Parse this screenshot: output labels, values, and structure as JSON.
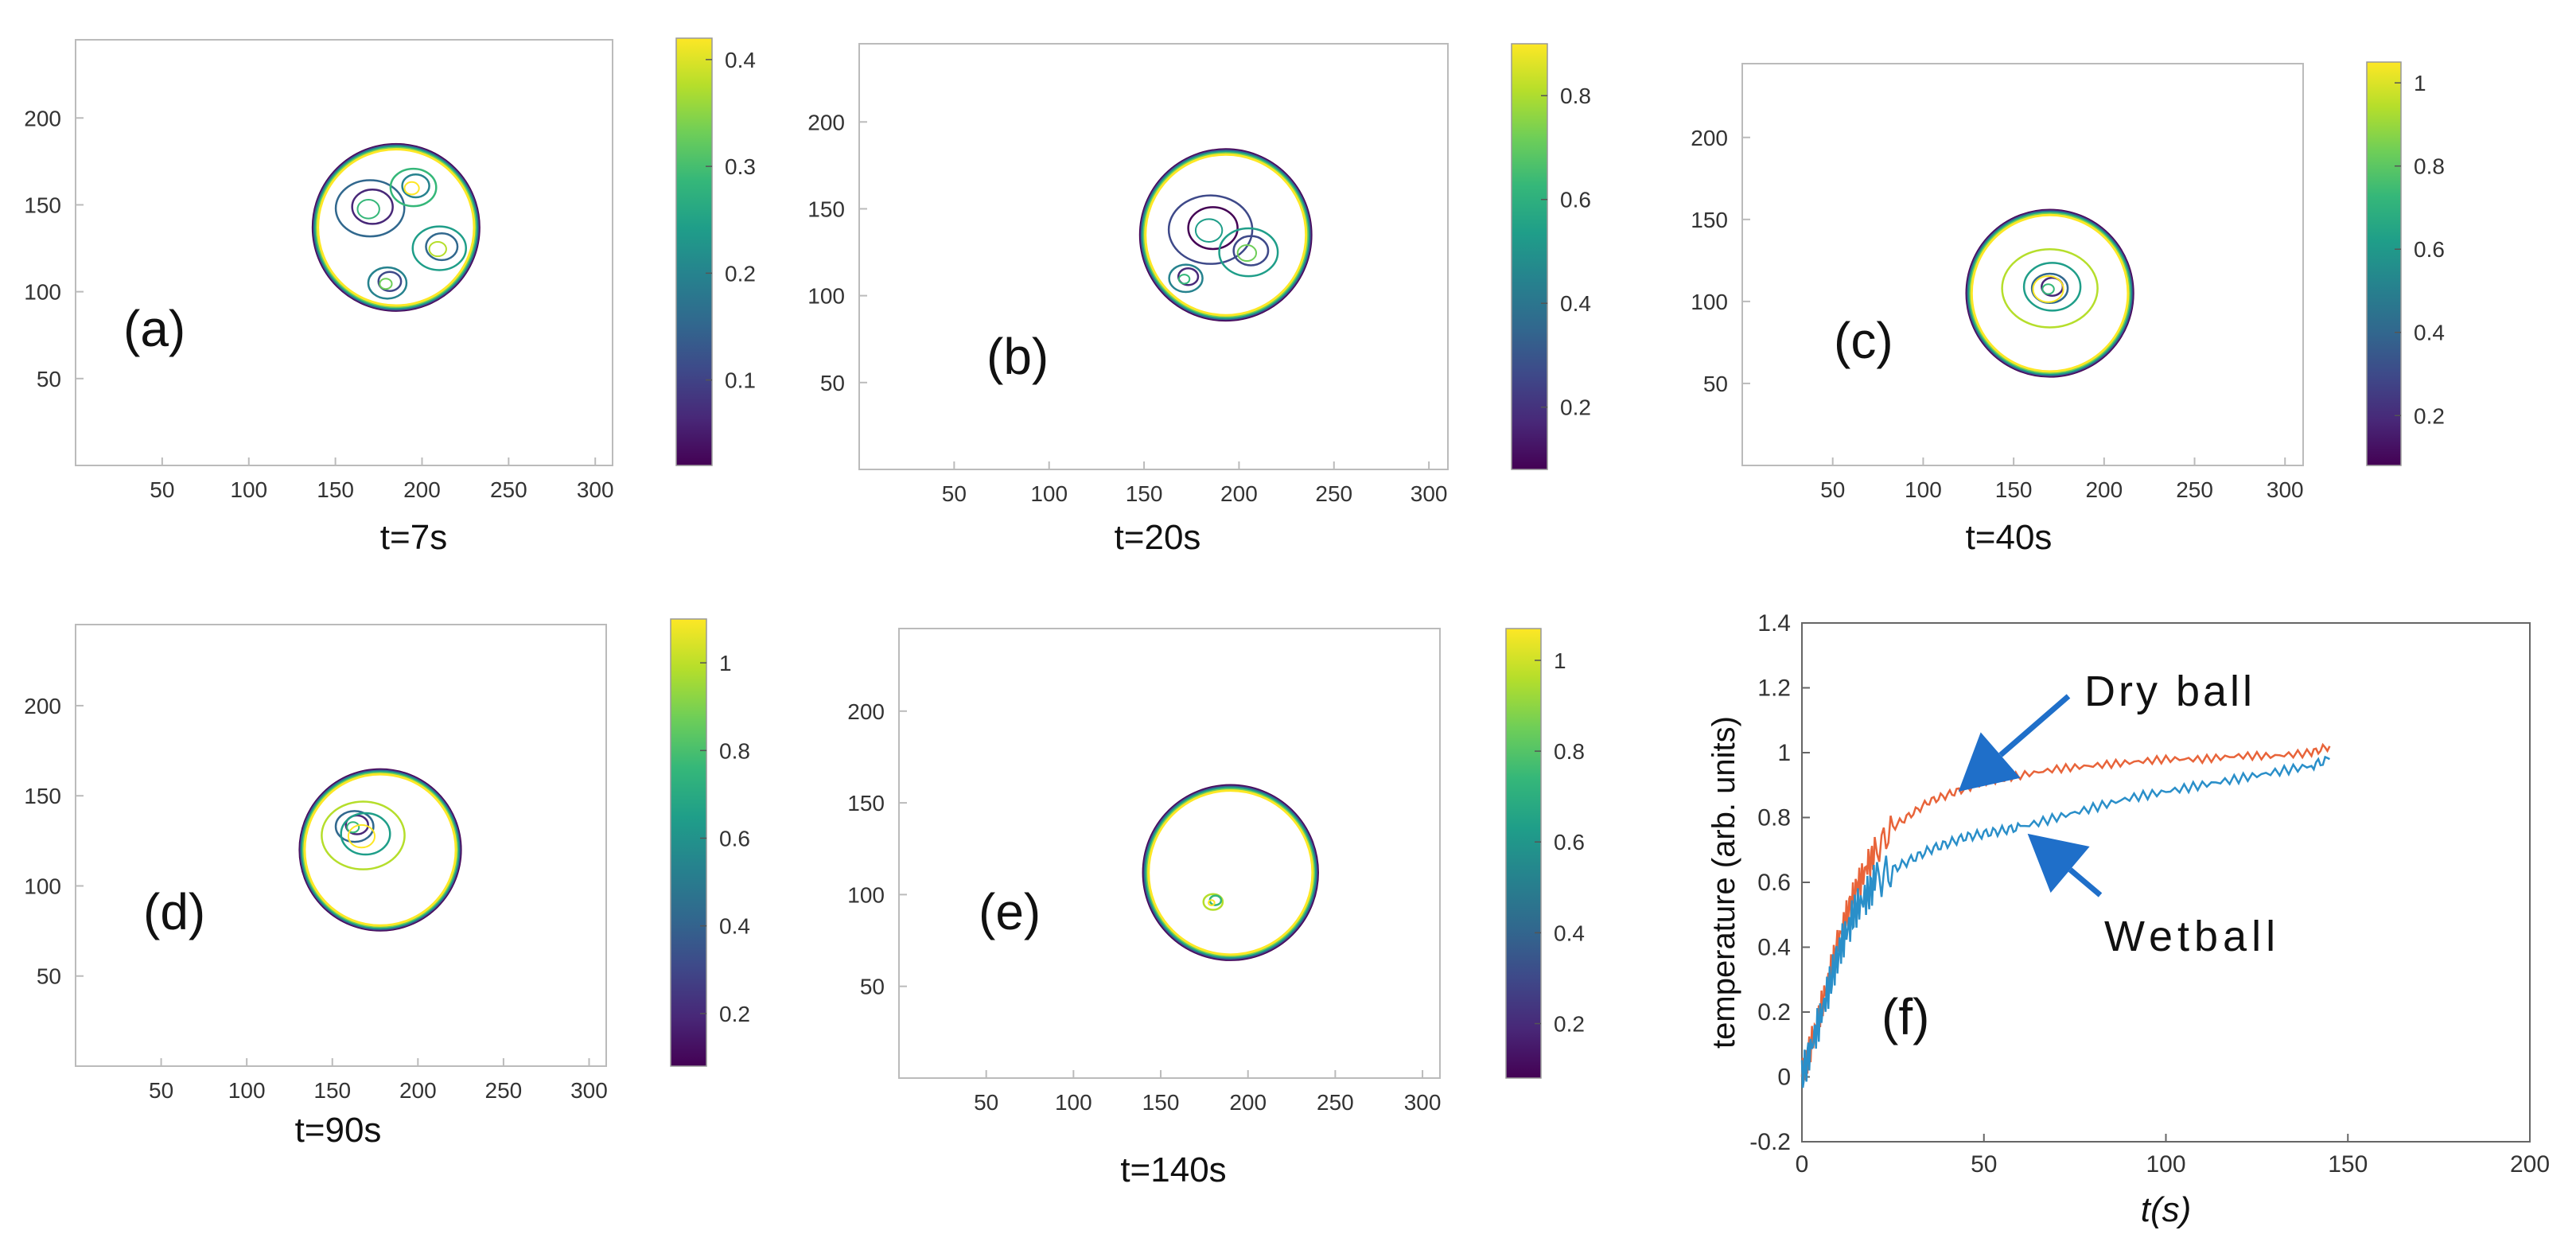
{
  "figure_title": "",
  "colors": {
    "viridis": [
      "#440154",
      "#482878",
      "#3e4989",
      "#31688e",
      "#26828e",
      "#1f9e89",
      "#35b779",
      "#6ece58",
      "#b5de2b",
      "#fde725"
    ],
    "dry": "#e8643a",
    "wet": "#2a8fc9",
    "arrow": "#1f6fc9",
    "axis": "#666666"
  },
  "chart_data": [
    {
      "id": "a",
      "type": "contour",
      "label": "(a)",
      "caption": "t=7s",
      "xticks": [
        50,
        100,
        150,
        200,
        250,
        300
      ],
      "yticks": [
        50,
        100,
        150,
        200
      ],
      "xlim": [
        0,
        310
      ],
      "ylim": [
        0,
        245
      ],
      "colorbar": {
        "min": 0.02,
        "max": 0.42,
        "ticks": [
          0.1,
          0.2,
          0.3,
          0.4
        ],
        "tick_labels": [
          "0.1",
          "0.2",
          "0.3",
          "0.4"
        ]
      },
      "droplet": {
        "cx": 185,
        "cy": 137,
        "r": 48
      },
      "features": [
        {
          "cx": 170,
          "cy": 148,
          "r": 18,
          "value": 0.15
        },
        {
          "cx": 180,
          "cy": 105,
          "r": 10,
          "value": 0.2
        },
        {
          "cx": 195,
          "cy": 160,
          "r": 12,
          "value": 0.3
        },
        {
          "cx": 210,
          "cy": 125,
          "r": 14,
          "value": 0.25
        }
      ]
    },
    {
      "id": "b",
      "type": "contour",
      "label": "(b)",
      "caption": "t=20s",
      "xticks": [
        50,
        100,
        150,
        200,
        250,
        300
      ],
      "yticks": [
        50,
        100,
        150,
        200
      ],
      "xlim": [
        0,
        310
      ],
      "ylim": [
        0,
        245
      ],
      "colorbar": {
        "min": 0.08,
        "max": 0.9,
        "ticks": [
          0.2,
          0.4,
          0.6,
          0.8
        ],
        "tick_labels": [
          "0.2",
          "0.4",
          "0.6",
          "0.8"
        ]
      },
      "droplet": {
        "cx": 193,
        "cy": 135,
        "r": 45
      },
      "features": [
        {
          "cx": 185,
          "cy": 138,
          "r": 20,
          "value": 0.3
        },
        {
          "cx": 205,
          "cy": 125,
          "r": 14,
          "value": 0.5
        },
        {
          "cx": 172,
          "cy": 110,
          "r": 8,
          "value": 0.4
        }
      ]
    },
    {
      "id": "c",
      "type": "contour",
      "label": "(c)",
      "caption": "t=40s",
      "xticks": [
        50,
        100,
        150,
        200,
        250,
        300
      ],
      "yticks": [
        50,
        100,
        150,
        200
      ],
      "xlim": [
        0,
        310
      ],
      "ylim": [
        0,
        245
      ],
      "colorbar": {
        "min": 0.08,
        "max": 1.05,
        "ticks": [
          0.2,
          0.4,
          0.6,
          0.8,
          1.0
        ],
        "tick_labels": [
          "0.2",
          "0.4",
          "0.6",
          "0.8",
          "1"
        ]
      },
      "droplet": {
        "cx": 170,
        "cy": 105,
        "r": 46
      },
      "features": [
        {
          "cx": 170,
          "cy": 108,
          "r": 9,
          "value": 0.4
        },
        {
          "cx": 170,
          "cy": 108,
          "r": 24,
          "value": 0.9
        }
      ]
    },
    {
      "id": "d",
      "type": "contour",
      "label": "(d)",
      "caption": "t=90s",
      "xticks": [
        50,
        100,
        150,
        200,
        250,
        300
      ],
      "yticks": [
        50,
        100,
        150,
        200
      ],
      "xlim": [
        0,
        310
      ],
      "ylim": [
        0,
        245
      ],
      "colorbar": {
        "min": 0.08,
        "max": 1.1,
        "ticks": [
          0.2,
          0.4,
          0.6,
          0.8,
          1.0
        ],
        "tick_labels": [
          "0.2",
          "0.4",
          "0.6",
          "0.8",
          "1"
        ]
      },
      "droplet": {
        "cx": 178,
        "cy": 120,
        "r": 47
      },
      "features": [
        {
          "cx": 163,
          "cy": 133,
          "r": 10,
          "value": 0.45
        },
        {
          "cx": 168,
          "cy": 128,
          "r": 22,
          "value": 0.95
        }
      ]
    },
    {
      "id": "e",
      "type": "contour",
      "label": "(e)",
      "caption": "t=140s",
      "xticks": [
        50,
        100,
        150,
        200,
        250,
        300
      ],
      "yticks": [
        50,
        100,
        150,
        200
      ],
      "xlim": [
        0,
        310
      ],
      "ylim": [
        0,
        245
      ],
      "colorbar": {
        "min": 0.08,
        "max": 1.07,
        "ticks": [
          0.2,
          0.4,
          0.6,
          0.8,
          1.0
        ],
        "tick_labels": [
          "0.2",
          "0.4",
          "0.6",
          "0.8",
          "1"
        ]
      },
      "droplet": {
        "cx": 190,
        "cy": 112,
        "r": 50
      },
      "features": [
        {
          "cx": 180,
          "cy": 96,
          "r": 5,
          "value": 0.95
        }
      ]
    },
    {
      "id": "f",
      "type": "line",
      "label": "(f)",
      "xlabel": "t(s)",
      "ylabel": "temperature (arb. units)",
      "xlim": [
        0,
        200
      ],
      "ylim": [
        -0.2,
        1.4
      ],
      "xticks": [
        0,
        50,
        100,
        150,
        200
      ],
      "xtick_labels": [
        "0",
        "50",
        "100",
        "150",
        "200"
      ],
      "yticks": [
        -0.2,
        0,
        0.2,
        0.4,
        0.6,
        0.8,
        1.0,
        1.2,
        1.4
      ],
      "ytick_labels": [
        "-0.2",
        "0",
        "0.2",
        "0.4",
        "0.6",
        "0.8",
        "1",
        "1.2",
        "1.4"
      ],
      "series": [
        {
          "name": "Dry ball",
          "x": [
            0,
            2,
            5,
            8,
            10,
            13,
            15,
            18,
            20,
            25,
            30,
            35,
            40,
            45,
            50,
            55,
            60,
            70,
            80,
            90,
            100,
            110,
            120,
            130,
            140,
            145
          ],
          "y": [
            0.0,
            0.08,
            0.2,
            0.33,
            0.42,
            0.52,
            0.58,
            0.65,
            0.69,
            0.77,
            0.81,
            0.85,
            0.87,
            0.89,
            0.91,
            0.92,
            0.93,
            0.95,
            0.96,
            0.97,
            0.98,
            0.98,
            0.99,
            0.99,
            1.0,
            1.02
          ]
        },
        {
          "name": "Wet ball",
          "x": [
            0,
            2,
            5,
            8,
            10,
            13,
            15,
            18,
            20,
            25,
            30,
            35,
            40,
            45,
            50,
            55,
            60,
            70,
            80,
            90,
            100,
            110,
            120,
            130,
            140,
            145
          ],
          "y": [
            0.0,
            0.07,
            0.18,
            0.3,
            0.38,
            0.47,
            0.52,
            0.56,
            0.6,
            0.64,
            0.67,
            0.7,
            0.72,
            0.74,
            0.75,
            0.76,
            0.77,
            0.8,
            0.83,
            0.86,
            0.88,
            0.9,
            0.92,
            0.94,
            0.96,
            0.98
          ]
        }
      ],
      "annotations": [
        {
          "text": "Dry ball",
          "arrow_to": [
            43,
            0.88
          ]
        },
        {
          "text": "Wetball",
          "arrow_to": [
            62,
            0.75
          ]
        }
      ]
    }
  ]
}
